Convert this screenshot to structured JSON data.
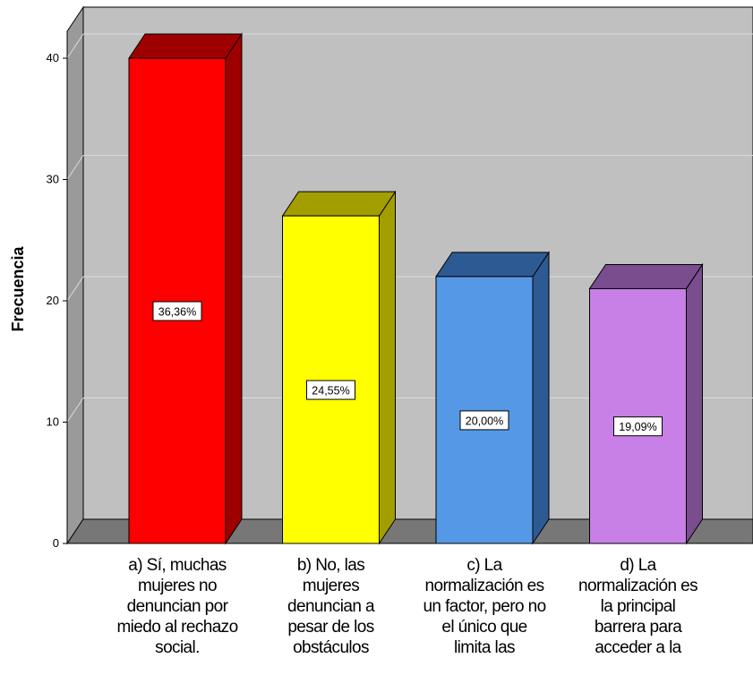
{
  "chart_data": {
    "type": "bar",
    "ylabel": "Frecuencia",
    "ylim": [
      0,
      40
    ],
    "yticks": [
      "0",
      "10",
      "20",
      "30",
      "40"
    ],
    "grid": true,
    "categories": [
      "a) Sí, muchas\nmujeres no\ndenuncian por\nmiedo al rechazo\nsocial.",
      "b) No, las\nmujeres\ndenuncian a\npesar de los\nobstáculos",
      "c) La\nnormalización es\nun factor, pero no\nel único que\nlimita las",
      "d) La\nnormalización es\nla principal\nbarrera para\nacceder a la"
    ],
    "values": [
      40,
      27,
      22,
      21
    ],
    "data_labels": [
      "36,36%",
      "24,55%",
      "20,00%",
      "19,09%"
    ],
    "colors": [
      {
        "front": "#ff0000",
        "top": "#9e0000",
        "side": "#9e0000"
      },
      {
        "front": "#ffff00",
        "top": "#a39e00",
        "side": "#a39e00"
      },
      {
        "front": "#5599e6",
        "top": "#2e5a94",
        "side": "#2e5a94"
      },
      {
        "front": "#c880e6",
        "top": "#7a4d8f",
        "side": "#7a4d8f"
      }
    ]
  }
}
